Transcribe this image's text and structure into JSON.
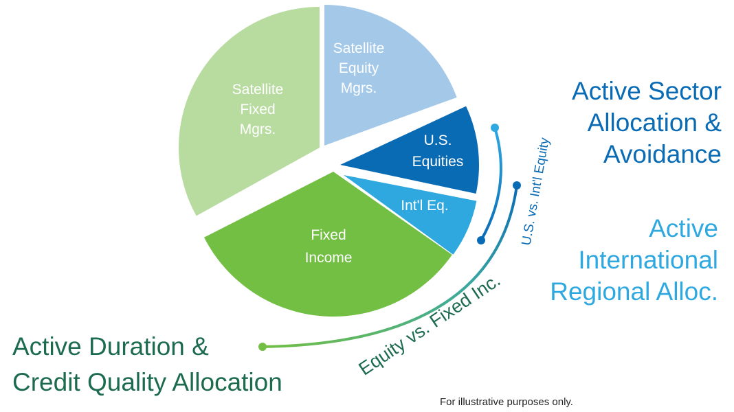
{
  "slices": [
    {
      "lines": [
        "Satellite",
        "Fixed",
        "Mgrs."
      ]
    },
    {
      "lines": [
        "Satellite",
        "Equity",
        "Mgrs."
      ]
    },
    {
      "lines": [
        "U.S.",
        "Equities"
      ]
    },
    {
      "lines": [
        "Int'l Eq."
      ]
    },
    {
      "lines": [
        "Fixed",
        "Income"
      ]
    }
  ],
  "strategies": [
    {
      "lines": [
        "Active Sector",
        "Allocation &",
        "Avoidance"
      ]
    },
    {
      "lines": [
        "Active",
        "International",
        "Regional Alloc."
      ]
    },
    {
      "lines": [
        "Active Duration &",
        "Credit Quality Allocation"
      ]
    }
  ],
  "arc_labels": [
    "U.S. vs. Int'l Equity",
    "Equity vs. Fixed Inc."
  ],
  "footnote": "For illustrative purposes only."
}
